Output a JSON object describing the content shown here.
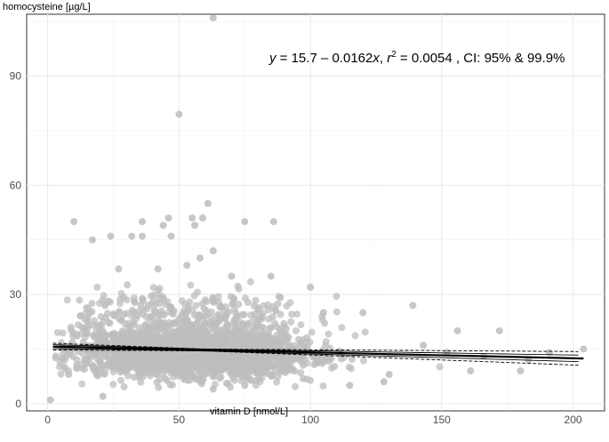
{
  "chart_data": {
    "type": "scatter",
    "title": "",
    "xlabel": "vitamin D [nmol/L]",
    "ylabel": "homocysteine [µg/L]",
    "xlim": [
      -8,
      212
    ],
    "ylim": [
      -2,
      107
    ],
    "x_ticks": [
      0,
      50,
      100,
      150,
      200
    ],
    "y_ticks": [
      0,
      30,
      60,
      90
    ],
    "grid": true,
    "annotation": {
      "y_eq": "y",
      "eq_mid": " = 15.7 – 0.0162",
      "x_var": "x",
      "sep": ", ",
      "r_var": "r",
      "r_exp": "2",
      "rest": " = 0.0054 , CI: 95% & 99.9%"
    },
    "regression": {
      "intercept": 15.7,
      "slope": -0.0162,
      "x_range": [
        2,
        204
      ],
      "ci95_halfwidth_end": 0.9,
      "ci999_halfwidth_end": 1.9
    },
    "points_note_style": {
      "color": "#bdbdbd",
      "line_color": "#000000"
    },
    "outliers": [
      {
        "x": 1,
        "y": 1
      },
      {
        "x": 50,
        "y": 79.5
      },
      {
        "x": 63,
        "y": 106
      },
      {
        "x": 32,
        "y": 46
      },
      {
        "x": 55,
        "y": 51
      },
      {
        "x": 36,
        "y": 50
      },
      {
        "x": 46,
        "y": 51
      },
      {
        "x": 44,
        "y": 49
      },
      {
        "x": 56,
        "y": 49
      },
      {
        "x": 61,
        "y": 55
      },
      {
        "x": 59,
        "y": 51
      },
      {
        "x": 75,
        "y": 50
      },
      {
        "x": 86,
        "y": 50
      },
      {
        "x": 10,
        "y": 50
      },
      {
        "x": 24,
        "y": 46
      },
      {
        "x": 17,
        "y": 45
      },
      {
        "x": 36,
        "y": 46
      },
      {
        "x": 47,
        "y": 46
      },
      {
        "x": 63,
        "y": 42
      },
      {
        "x": 58,
        "y": 40
      },
      {
        "x": 53,
        "y": 38
      },
      {
        "x": 27,
        "y": 37
      },
      {
        "x": 42,
        "y": 37
      },
      {
        "x": 70,
        "y": 35
      },
      {
        "x": 85,
        "y": 35
      },
      {
        "x": 100,
        "y": 32
      },
      {
        "x": 139,
        "y": 27
      },
      {
        "x": 120,
        "y": 25
      },
      {
        "x": 105,
        "y": 25
      },
      {
        "x": 172,
        "y": 20
      },
      {
        "x": 156,
        "y": 20
      },
      {
        "x": 130,
        "y": 8
      },
      {
        "x": 128,
        "y": 6
      },
      {
        "x": 161,
        "y": 9
      },
      {
        "x": 180,
        "y": 9
      },
      {
        "x": 204,
        "y": 15
      },
      {
        "x": 21,
        "y": 2
      },
      {
        "x": 63,
        "y": 4
      },
      {
        "x": 75,
        "y": 5
      },
      {
        "x": 115,
        "y": 5
      },
      {
        "x": 8,
        "y": 8
      },
      {
        "x": 191,
        "y": 14
      },
      {
        "x": 183,
        "y": 12
      },
      {
        "x": 166,
        "y": 13
      },
      {
        "x": 152,
        "y": 14
      },
      {
        "x": 143,
        "y": 16
      }
    ]
  }
}
